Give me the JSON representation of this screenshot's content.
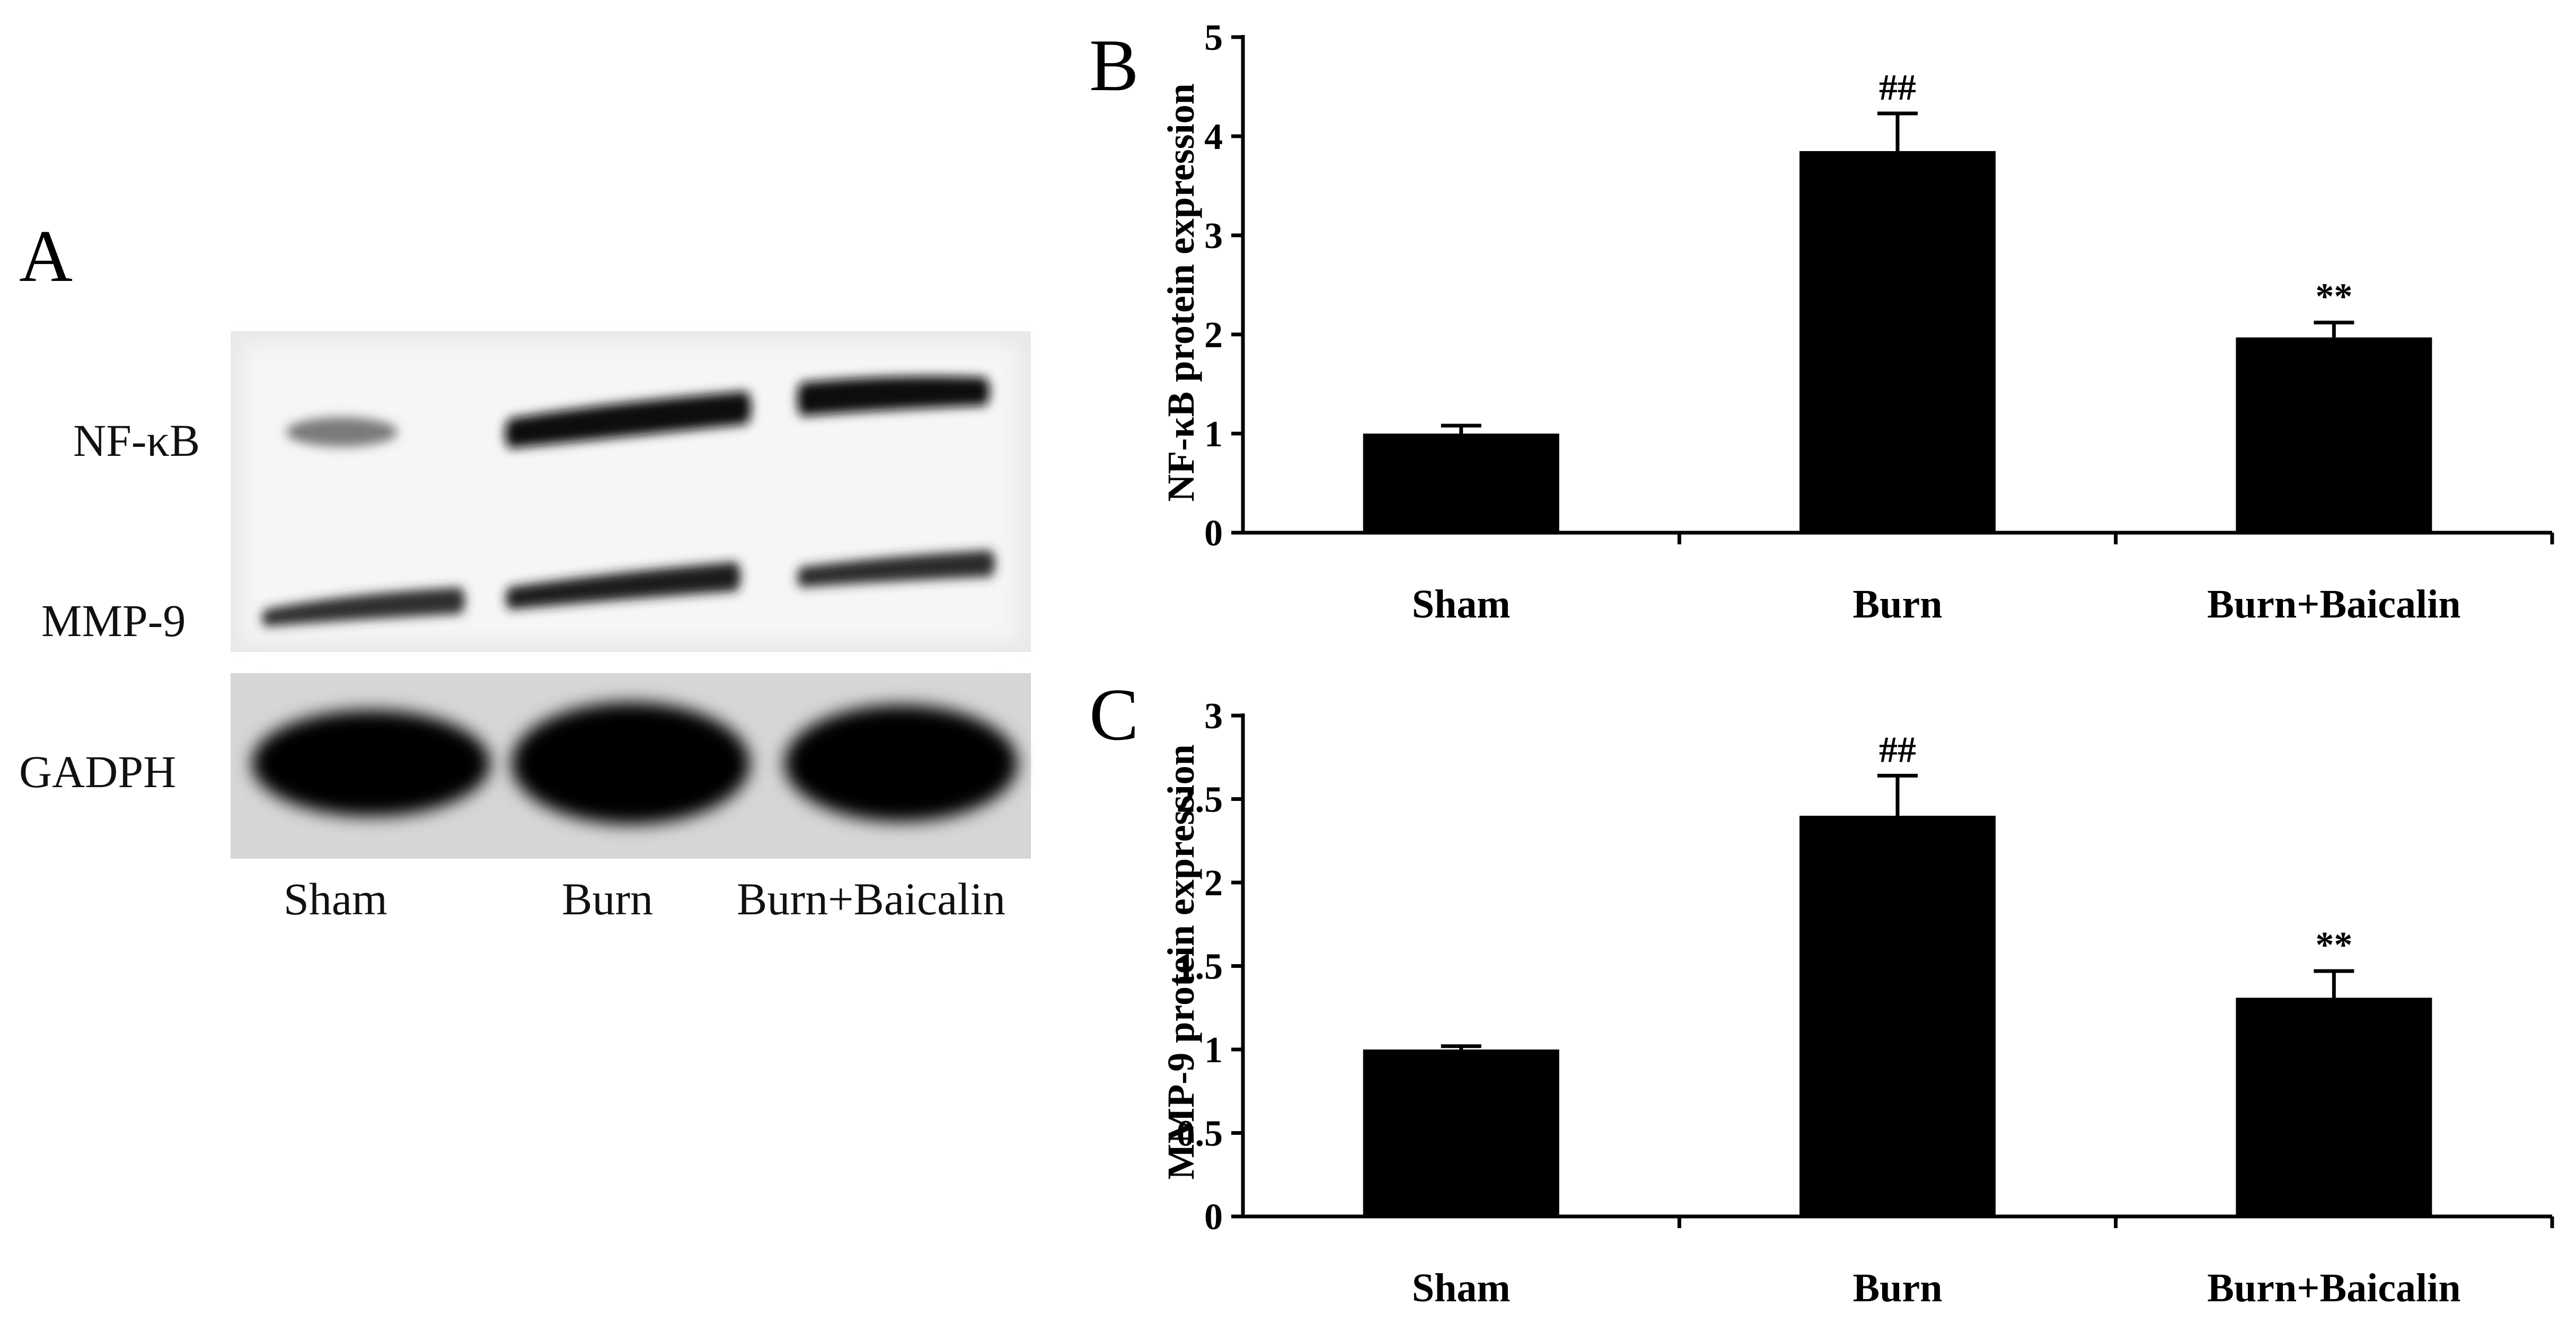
{
  "panel_a": {
    "letter": "A",
    "row_labels": [
      "NF-κB",
      "MMP-9",
      "GADPH"
    ],
    "lane_labels": [
      "Sham",
      "Burn",
      "Burn+Baicalin"
    ]
  },
  "chart_data": [
    {
      "panel": "B",
      "type": "bar",
      "categories": [
        "Sham",
        "Burn",
        "Burn+Baicalin"
      ],
      "values": [
        1.0,
        3.85,
        1.97
      ],
      "errors": [
        0.08,
        0.38,
        0.15
      ],
      "annotations": [
        "",
        "##",
        "**"
      ],
      "ylabel": "NF-κB protein expression",
      "ylim": [
        0,
        5
      ],
      "yticks": [
        "0",
        "1",
        "2",
        "3",
        "4",
        "5"
      ],
      "bar_color": "#000000"
    },
    {
      "panel": "C",
      "type": "bar",
      "categories": [
        "Sham",
        "Burn",
        "Burn+Baicalin"
      ],
      "values": [
        1.0,
        2.4,
        1.31
      ],
      "errors": [
        0.02,
        0.24,
        0.16
      ],
      "annotations": [
        "",
        "##",
        "**"
      ],
      "ylabel": "MMP-9 protein expression",
      "ylim": [
        0,
        3
      ],
      "yticks": [
        "0",
        "0.5",
        "1",
        "1.5",
        "2",
        "2.5",
        "3"
      ],
      "bar_color": "#000000"
    }
  ]
}
